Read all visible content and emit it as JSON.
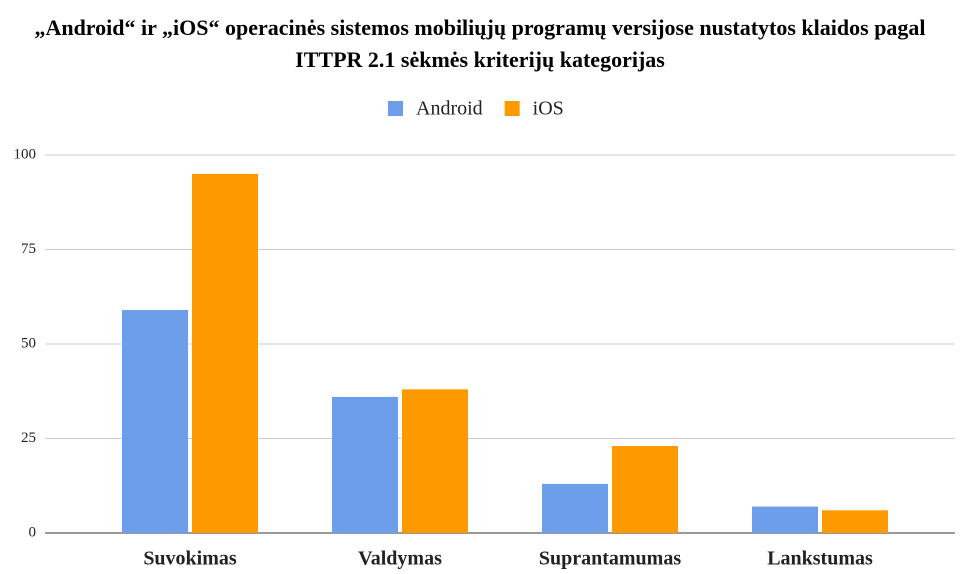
{
  "chart_data": {
    "type": "bar",
    "title": "„Android“ ir „iOS“ operacinės sistemos mobiliųjų programų versijose nustatytos klaidos pagal ITTPR 2.1 sėkmės kriterijų kategorijas",
    "categories": [
      "Suvokimas",
      "Valdymas",
      "Suprantamumas",
      "Lankstumas"
    ],
    "series": [
      {
        "name": "Android",
        "color": "#6d9eeb",
        "values": [
          59,
          36,
          13,
          7
        ]
      },
      {
        "name": "iOS",
        "color": "#ff9900",
        "values": [
          95,
          38,
          23,
          6
        ]
      }
    ],
    "ylim": [
      0,
      100
    ],
    "yticks": [
      0,
      25,
      50,
      75,
      100
    ],
    "grid": true,
    "legend": "top"
  }
}
